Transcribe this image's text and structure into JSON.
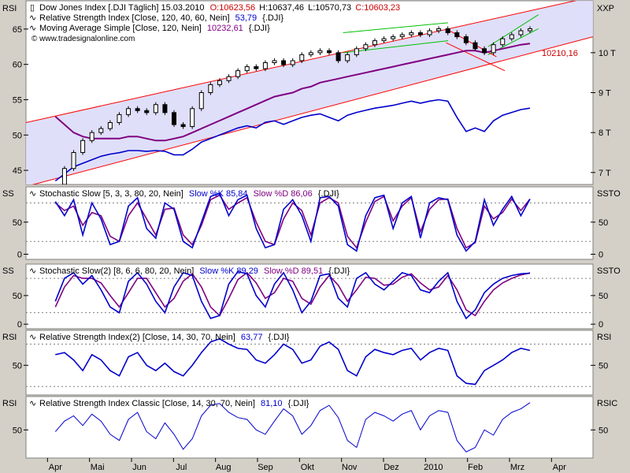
{
  "chart_data": [
    {
      "type": "line",
      "panel": "price",
      "title": "Dow Jones Index [.DJI  Täglich] 15.03.2010",
      "ohlc": {
        "open": "O:10623,56",
        "high": "H:10637,46",
        "low": "L:10570,73",
        "close": "C:10603,23"
      },
      "legend": [
        {
          "label": "Relative Strength Index [Close, 120, 40, 60, Nein]",
          "value": "53,79",
          "suffix": "{.DJI}",
          "color": "#0000cc"
        },
        {
          "label": "Moving Average Simple [Close, 120, Nein]",
          "value": "10232,61",
          "suffix": "{.DJI}",
          "color": "#800080"
        }
      ],
      "watermark": "© www.tradesignalonline.com",
      "left_axis": {
        "label": "RSI",
        "ticks": [
          45,
          50,
          55,
          60,
          65
        ],
        "range": [
          43,
          69
        ]
      },
      "right_axis": {
        "label": "XXP",
        "ticks": [
          "7 T",
          "8 T",
          "9 T",
          "10 T"
        ],
        "tick_values": [
          7000,
          8000,
          9000,
          10000
        ],
        "range": [
          6700,
          11300
        ]
      },
      "price_label": "10210,16",
      "series": [
        {
          "name": "Dow Jones Index (candles)",
          "color": "#000000",
          "values": [
            6700,
            7100,
            7500,
            7800,
            8000,
            8100,
            8250,
            8450,
            8600,
            8550,
            8500,
            8700,
            8500,
            8200,
            8150,
            8600,
            9000,
            9200,
            9300,
            9400,
            9550,
            9650,
            9600,
            9750,
            9800,
            9700,
            9800,
            9950,
            10000,
            10050,
            10000,
            9800,
            9950,
            10100,
            10200,
            10300,
            10350,
            10400,
            10450,
            10500,
            10450,
            10550,
            10600,
            10500,
            10400,
            10250,
            10100,
            10000,
            10200,
            10350,
            10450,
            10550,
            10600
          ]
        },
        {
          "name": "Moving Average Simple 120",
          "color": "#800080",
          "values": [
            8400,
            8200,
            8000,
            7900,
            7850,
            7850,
            7850,
            7850,
            7900,
            7900,
            7850,
            7800,
            7800,
            7850,
            7900,
            8000,
            8100,
            8200,
            8300,
            8400,
            8500,
            8600,
            8700,
            8800,
            8900,
            8950,
            9000,
            9100,
            9150,
            9250,
            9300,
            9350,
            9400,
            9450,
            9500,
            9550,
            9600,
            9650,
            9700,
            9750,
            9800,
            9850,
            9900,
            9950,
            10000,
            10050,
            10050,
            10000,
            10050,
            10100,
            10150,
            10200,
            10230
          ]
        },
        {
          "name": "RSI 120",
          "color": "#0000cc",
          "values": [
            43.5,
            44.5,
            45.5,
            46,
            46.5,
            47,
            47.3,
            47.5,
            47.8,
            47.8,
            47.7,
            47.8,
            47.7,
            47.2,
            47.2,
            48,
            49,
            49.5,
            50,
            50.5,
            51,
            51.3,
            51,
            51.8,
            52,
            51.5,
            52,
            52.5,
            52.8,
            53,
            52.5,
            52,
            52.8,
            53.2,
            53.5,
            53.8,
            54,
            54.2,
            54.5,
            54.8,
            54.5,
            54.8,
            55,
            54.8,
            52.5,
            50.5,
            51,
            50.5,
            52,
            52.8,
            53.2,
            53.6,
            53.8
          ]
        }
      ]
    },
    {
      "type": "line",
      "panel": "stochastic_slow_1",
      "legend": [
        {
          "label": "Stochastic Slow [5, 3, 3, 80, 20, Nein]",
          "color": "#000000"
        },
        {
          "label": "Slow %K 85,84",
          "color": "#0000cc"
        },
        {
          "label": "Slow %D 86,06",
          "color": "#800080"
        },
        {
          "label": "{.DJI}",
          "color": "#000000"
        }
      ],
      "left_axis": {
        "label": "SS",
        "ticks": [
          0,
          50
        ],
        "range": [
          -8,
          105
        ]
      },
      "right_axis": {
        "label": "SSTO",
        "ticks": [
          0,
          50
        ],
        "range": [
          -8,
          105
        ]
      },
      "reference_lines": [
        20,
        80
      ],
      "series": [
        {
          "name": "Slow %K",
          "color": "#0000cc",
          "values": [
            82,
            60,
            85,
            30,
            80,
            55,
            15,
            20,
            75,
            88,
            40,
            25,
            80,
            70,
            20,
            10,
            50,
            90,
            95,
            60,
            85,
            92,
            40,
            10,
            15,
            70,
            85,
            60,
            20,
            88,
            90,
            75,
            15,
            5,
            60,
            88,
            92,
            40,
            80,
            90,
            25,
            80,
            88,
            85,
            30,
            5,
            20,
            85,
            45,
            70,
            90,
            60,
            86
          ]
        },
        {
          "name": "Slow %D",
          "color": "#800080",
          "values": [
            80,
            68,
            75,
            45,
            65,
            60,
            28,
            20,
            60,
            80,
            55,
            30,
            70,
            72,
            30,
            15,
            45,
            85,
            92,
            70,
            80,
            88,
            50,
            20,
            15,
            55,
            80,
            68,
            30,
            80,
            88,
            80,
            28,
            10,
            50,
            82,
            90,
            52,
            75,
            88,
            35,
            70,
            85,
            86,
            40,
            10,
            18,
            75,
            55,
            65,
            86,
            68,
            86
          ]
        }
      ]
    },
    {
      "type": "line",
      "panel": "stochastic_slow_2",
      "legend": [
        {
          "label": "Stochastic Slow(2) [8, 6, 6, 80, 20, Nein]",
          "color": "#000000"
        },
        {
          "label": "Slow %K 89,29",
          "color": "#0000cc"
        },
        {
          "label": "Slow %D 89,51",
          "color": "#800080"
        },
        {
          "label": "{.DJI}",
          "color": "#000000"
        }
      ],
      "left_axis": {
        "label": "SS",
        "ticks": [
          0,
          50
        ],
        "range": [
          -8,
          105
        ]
      },
      "right_axis": {
        "label": "SSTO",
        "ticks": [
          0,
          50
        ],
        "range": [
          -8,
          105
        ]
      },
      "reference_lines": [
        20,
        80
      ],
      "series": [
        {
          "name": "Slow %K",
          "color": "#0000cc",
          "values": [
            40,
            80,
            90,
            70,
            85,
            60,
            30,
            20,
            75,
            90,
            70,
            40,
            20,
            65,
            90,
            85,
            40,
            10,
            15,
            70,
            92,
            88,
            50,
            30,
            70,
            90,
            60,
            20,
            40,
            85,
            88,
            45,
            30,
            80,
            90,
            70,
            60,
            75,
            90,
            85,
            60,
            55,
            75,
            90,
            40,
            10,
            25,
            55,
            70,
            80,
            85,
            88,
            89
          ]
        },
        {
          "name": "Slow %D",
          "color": "#800080",
          "values": [
            30,
            65,
            85,
            80,
            80,
            72,
            50,
            30,
            55,
            80,
            80,
            55,
            30,
            45,
            75,
            88,
            65,
            30,
            15,
            45,
            78,
            90,
            72,
            45,
            55,
            80,
            75,
            45,
            35,
            65,
            85,
            68,
            40,
            60,
            82,
            80,
            68,
            70,
            82,
            88,
            72,
            60,
            65,
            85,
            60,
            25,
            15,
            40,
            60,
            72,
            80,
            86,
            89.5
          ]
        }
      ]
    },
    {
      "type": "line",
      "panel": "rsi_2",
      "legend": [
        {
          "label": "Relative Strength Index(2) [Close, 14, 30, 70, Nein]",
          "color": "#000000"
        },
        {
          "label": "63,77",
          "color": "#0000cc"
        },
        {
          "label": "{.DJI}",
          "color": "#000000"
        }
      ],
      "left_axis": {
        "label": "RSI",
        "ticks": [
          50
        ],
        "range": [
          22,
          83
        ]
      },
      "right_axis": {
        "label": "RSI",
        "ticks": [
          50
        ],
        "range": [
          22,
          83
        ]
      },
      "reference_lines": [
        30,
        70
      ],
      "series": [
        {
          "name": "RSI(2)",
          "color": "#0000cc",
          "values": [
            60,
            62,
            55,
            45,
            60,
            55,
            45,
            40,
            58,
            62,
            50,
            45,
            52,
            44,
            40,
            50,
            62,
            72,
            75,
            70,
            66,
            65,
            55,
            52,
            60,
            70,
            65,
            52,
            55,
            68,
            72,
            65,
            45,
            40,
            58,
            65,
            62,
            60,
            64,
            66,
            55,
            62,
            66,
            64,
            40,
            33,
            32,
            45,
            50,
            55,
            62,
            66,
            64
          ]
        }
      ]
    },
    {
      "type": "line",
      "panel": "rsi_classic",
      "legend": [
        {
          "label": "Relative Strength Index Classic [Close, 14, 30, 70, Nein]",
          "color": "#000000"
        },
        {
          "label": "81,10",
          "color": "#0000cc"
        },
        {
          "label": "{.DJI}",
          "color": "#000000"
        }
      ],
      "left_axis": {
        "label": "RSI",
        "ticks": [
          50
        ],
        "range": [
          18,
          88
        ]
      },
      "right_axis": {
        "label": "RSIC",
        "ticks": [
          50
        ],
        "range": [
          18,
          88
        ]
      },
      "series": [
        {
          "name": "RSI Classic",
          "color": "#0000cc",
          "values": [
            48,
            60,
            66,
            55,
            68,
            60,
            45,
            38,
            62,
            70,
            48,
            40,
            58,
            45,
            28,
            40,
            66,
            78,
            80,
            70,
            64,
            62,
            50,
            45,
            60,
            74,
            66,
            45,
            55,
            72,
            78,
            64,
            38,
            30,
            62,
            70,
            66,
            60,
            68,
            72,
            50,
            66,
            72,
            70,
            38,
            25,
            30,
            50,
            44,
            62,
            70,
            74,
            81
          ]
        }
      ]
    }
  ],
  "x_axis": {
    "labels": [
      "Apr",
      "Mai",
      "Jun",
      "Jul",
      "Aug",
      "Sep",
      "Okt",
      "Nov",
      "Dez",
      "2010",
      "Feb",
      "Mrz",
      "Apr"
    ],
    "range_months": [
      -0.7,
      12.8
    ],
    "label_month_index": [
      0,
      1,
      2,
      3,
      4,
      5,
      6,
      7,
      8,
      9,
      10,
      11,
      12
    ]
  },
  "colors": {
    "band_red": "#ff0000",
    "band_fill": "#dcdcfa",
    "trend_green": "#00c000",
    "rsi_blue": "#0000cc",
    "ma_purple": "#800080",
    "ref_dots": "#808080"
  }
}
